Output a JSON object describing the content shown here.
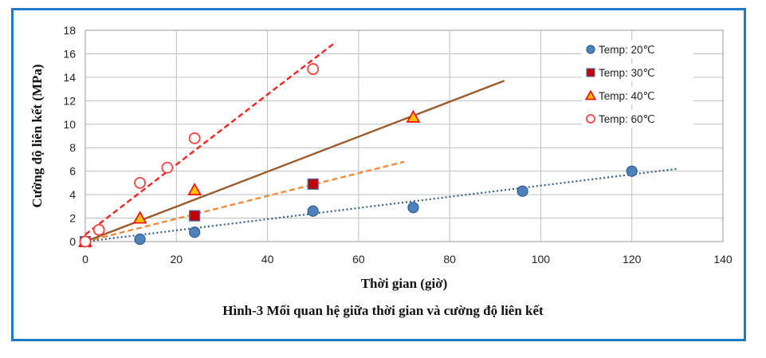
{
  "figure": {
    "caption": "Hình-3 Mối quan hệ giữa thời gian và cường độ liên kết"
  },
  "chart_data": {
    "type": "scatter",
    "xlabel": "Thời gian (giờ)",
    "ylabel": "Cường độ liên kết (MPa)",
    "xlim": [
      0,
      140
    ],
    "ylim": [
      0,
      18
    ],
    "xticks": [
      0,
      20,
      40,
      60,
      80,
      100,
      120,
      140
    ],
    "yticks": [
      0,
      2,
      4,
      6,
      8,
      10,
      12,
      14,
      16,
      18
    ],
    "grid": true,
    "legend_position": "top-right",
    "series": [
      {
        "name": "Temp: 20℃",
        "marker": "circle-filled",
        "color": "#4f81bd",
        "x": [
          0,
          12,
          24,
          50,
          72,
          96,
          120
        ],
        "y": [
          0,
          0.2,
          0.8,
          2.6,
          2.9,
          4.3,
          6.0
        ],
        "trendline": {
          "style": "dotted",
          "color": "#2f5d8a",
          "x": [
            0,
            130
          ],
          "y": [
            0,
            6.2
          ]
        }
      },
      {
        "name": "Temp: 30℃",
        "marker": "square-filled",
        "color": "#c00000",
        "x": [
          0,
          24,
          50
        ],
        "y": [
          0,
          2.2,
          4.9
        ],
        "trendline": {
          "style": "dashed",
          "color": "#f08a3c",
          "x": [
            0,
            70
          ],
          "y": [
            0,
            6.8
          ]
        }
      },
      {
        "name": "Temp: 40℃",
        "marker": "triangle-filled",
        "color": "#ff0000",
        "x": [
          0,
          12,
          24,
          72
        ],
        "y": [
          0,
          2.0,
          4.4,
          10.6
        ],
        "trendline": {
          "style": "solid",
          "color": "#9c5a2b",
          "x": [
            0,
            92
          ],
          "y": [
            0,
            13.7
          ]
        }
      },
      {
        "name": "Temp: 60℃",
        "marker": "circle-open",
        "color": "#ff4040",
        "x": [
          0,
          3,
          12,
          18,
          24,
          50
        ],
        "y": [
          0,
          1.0,
          5.0,
          6.3,
          8.8,
          14.7
        ],
        "trendline": {
          "style": "dashed",
          "color": "#ff2020",
          "x": [
            0,
            55
          ],
          "y": [
            0.6,
            17.0
          ]
        }
      }
    ]
  }
}
